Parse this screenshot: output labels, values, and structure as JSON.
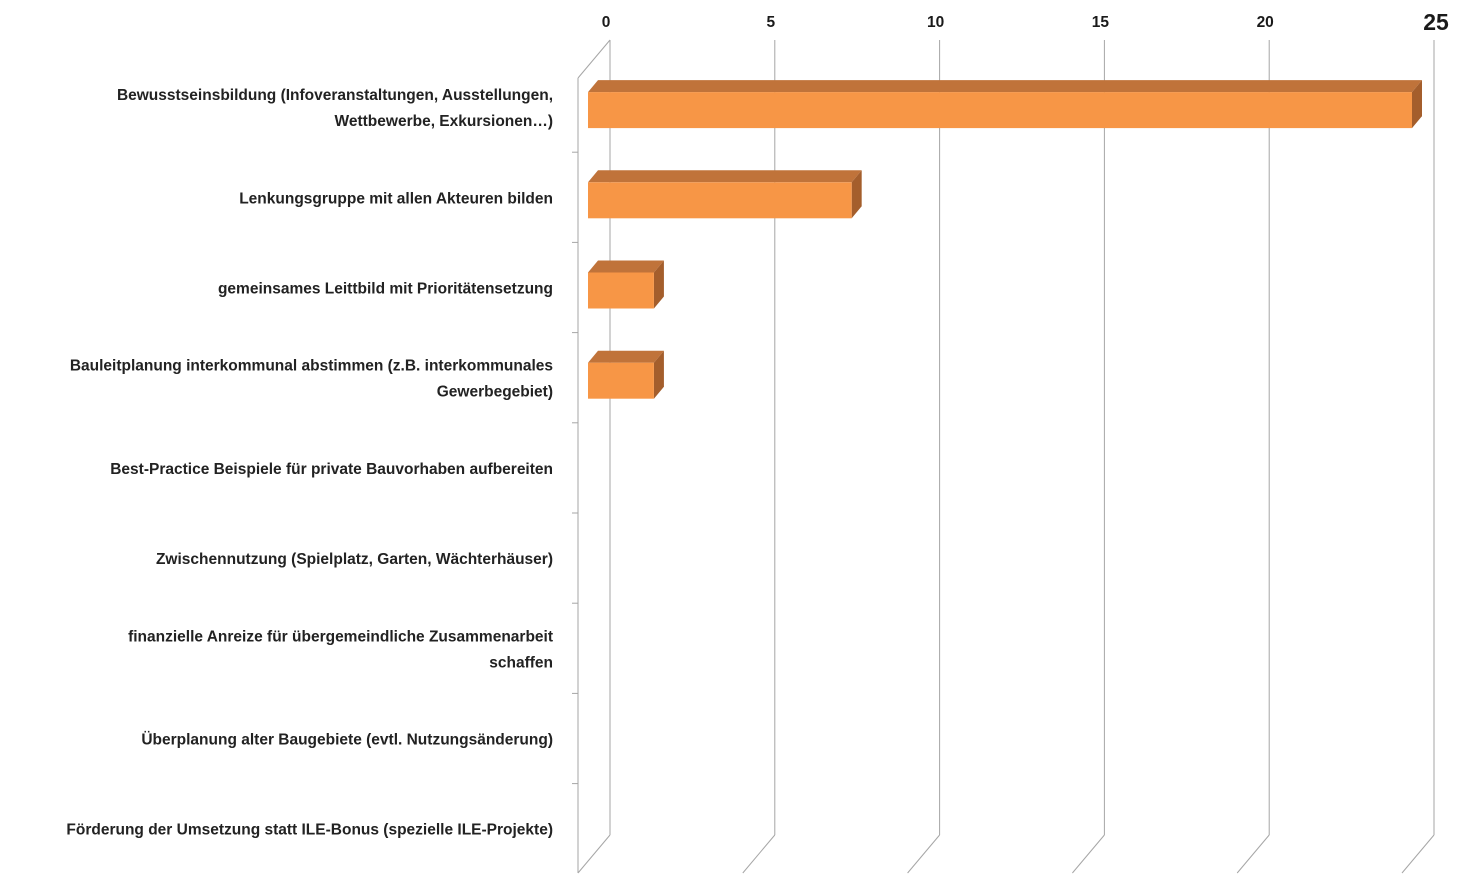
{
  "chart_data": {
    "type": "bar",
    "orientation": "horizontal",
    "three_d": true,
    "x_axis_position": "top",
    "categories": [
      "Bewusstseinsbildung (Infoveranstaltungen, Ausstellungen, Wettbewerbe, Exkursionen…)",
      "Lenkungsgruppe mit allen Akteuren bilden",
      "gemeinsames Leittbild mit Prioritätensetzung",
      "Bauleitplanung interkommunal abstimmen (z.B. interkommunales Gewerbegebiet)",
      "Best-Practice Beispiele für private Bauvorhaben aufbereiten",
      "Zwischennutzung (Spielplatz, Garten, Wächterhäuser)",
      "finanzielle Anreize für übergemeindliche Zusammenarbeit schaffen",
      "Überplanung alter Baugebiete (evtl. Nutzungsänderung)",
      "Förderung der Umsetzung statt ILE-Bonus (spezielle ILE-Projekte)"
    ],
    "category_label_lines": [
      [
        "Bewusstseinsbildung (Infoveranstaltungen, Ausstellungen,",
        "Wettbewerbe, Exkursionen…)"
      ],
      [
        "Lenkungsgruppe mit allen Akteuren bilden"
      ],
      [
        "gemeinsames Leittbild mit Prioritätensetzung"
      ],
      [
        "Bauleitplanung interkommunal abstimmen (z.B. interkommunales",
        "Gewerbegebiet)"
      ],
      [
        "Best-Practice Beispiele für private Bauvorhaben aufbereiten"
      ],
      [
        "Zwischennutzung (Spielplatz, Garten, Wächterhäuser)"
      ],
      [
        "finanzielle Anreize für übergemeindliche Zusammenarbeit",
        "schaffen"
      ],
      [
        "Überplanung alter Baugebiete (evtl. Nutzungsänderung)"
      ],
      [
        "Förderung der Umsetzung statt ILE-Bonus (spezielle ILE-Projekte)"
      ]
    ],
    "values": [
      25,
      8,
      2,
      2,
      0,
      0,
      0,
      0,
      0
    ],
    "xlim": [
      0,
      25
    ],
    "xticks": [
      0,
      5,
      10,
      15,
      20,
      25
    ],
    "xtick_labels": [
      "0",
      "5",
      "10",
      "15",
      "20",
      "25"
    ],
    "grid": true,
    "title": "",
    "xlabel": "",
    "ylabel": "",
    "colors": {
      "bar_front": "#F79646",
      "bar_top": "#C0733A",
      "bar_side": "#A45E2C",
      "grid": "#A6A6A6",
      "text": "#222222"
    }
  }
}
